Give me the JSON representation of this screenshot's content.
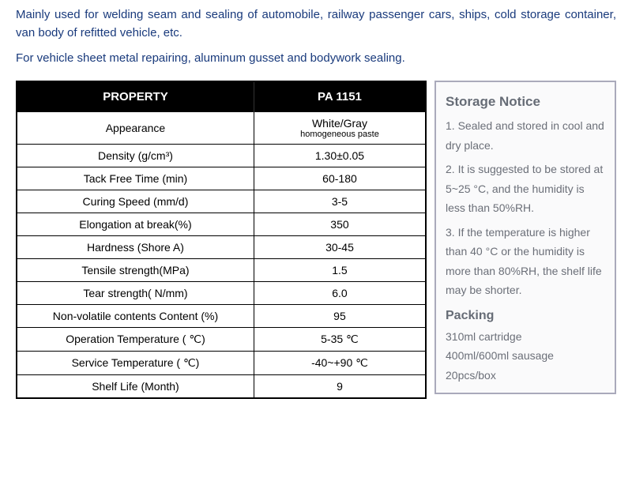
{
  "intro1": "Mainly used for welding seam and sealing of automobile, railway passenger cars, ships, cold storage container, van body of refitted vehicle, etc.",
  "intro2": "For vehicle sheet metal repairing, aluminum gusset and bodywork sealing.",
  "table": {
    "header_prop": "PROPERTY",
    "header_val": "PA 1151",
    "rows": [
      {
        "prop": "Appearance",
        "val": "White/Gray",
        "sub": "homogeneous paste"
      },
      {
        "prop": "Density (g/cm³)",
        "val": "1.30±0.05"
      },
      {
        "prop": "Tack Free Time (min)",
        "val": "60-180"
      },
      {
        "prop": "Curing Speed (mm/d)",
        "val": "3-5"
      },
      {
        "prop": "Elongation at break(%)",
        "val": "350"
      },
      {
        "prop": "Hardness (Shore A)",
        "val": "30-45"
      },
      {
        "prop": "Tensile strength(MPa)",
        "val": "1.5"
      },
      {
        "prop": "Tear strength( N/mm)",
        "val": "6.0"
      },
      {
        "prop": "Non-volatile contents Content  (%)",
        "val": "95"
      },
      {
        "prop": "Operation Temperature ( ℃)",
        "val": "5-35 ℃"
      },
      {
        "prop": "Service Temperature ( ℃)",
        "val": "-40~+90 ℃"
      },
      {
        "prop": "Shelf Life (Month)",
        "val": "9"
      }
    ]
  },
  "side": {
    "storage_title": "Storage Notice",
    "s1": "1.   Sealed and stored in cool and dry place.",
    "s2": "2.    It is suggested to be stored at 5~25 °C, and the humidity is less than 50%RH.",
    "s3": "3.   If the temperature is higher than 40 °C or the humidity is more than 80%RH, the shelf life may be shorter.",
    "packing_title": "Packing",
    "p1": "310ml cartridge",
    "p2": "400ml/600ml sausage",
    "p3": "20pcs/box"
  },
  "style": {
    "intro_color": "#193a7c",
    "header_bg": "#000000",
    "header_fg": "#ffffff",
    "border_color": "#000000",
    "side_border": "#aab",
    "side_bg": "#fafafb",
    "side_text": "#6b6f78"
  }
}
